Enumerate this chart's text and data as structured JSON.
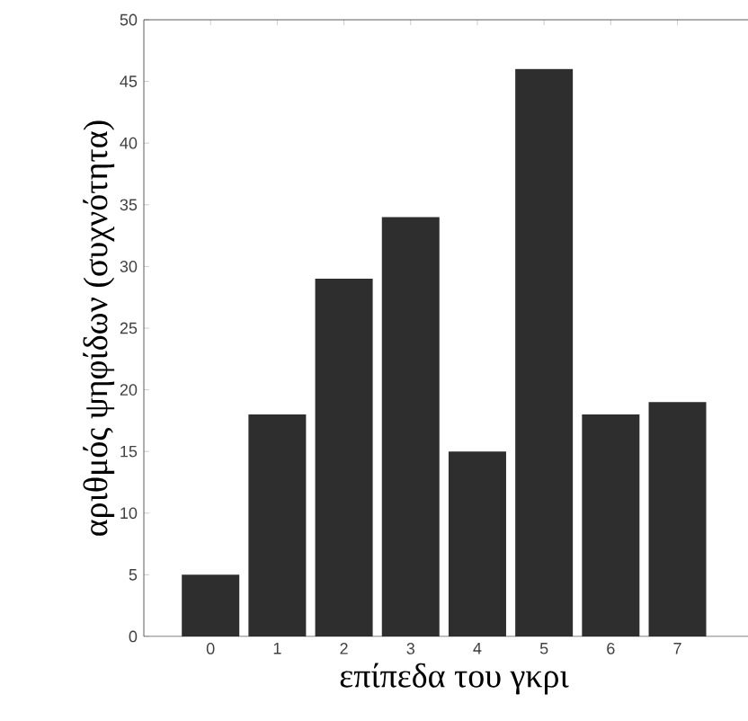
{
  "chart_data": {
    "type": "bar",
    "xlabel": "επίπεδα του γκρι",
    "ylabel": "αριθμός ψηφίδων (συχνότητα)",
    "categories": [
      "0",
      "1",
      "2",
      "3",
      "4",
      "5",
      "6",
      "7"
    ],
    "values": [
      5,
      18,
      29,
      34,
      15,
      46,
      18,
      19
    ],
    "color": "#2e2e2e",
    "ylim": [
      0,
      50
    ],
    "yticks": [
      0,
      5,
      10,
      15,
      20,
      25,
      30,
      35,
      40,
      45,
      50
    ],
    "grid": false
  }
}
